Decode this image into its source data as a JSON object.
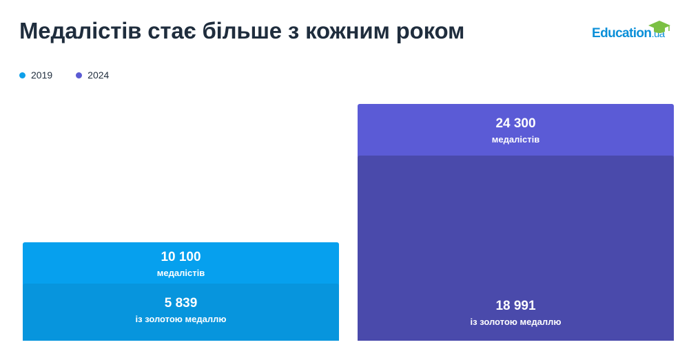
{
  "title": "Медалістів стає більше з кожним роком",
  "logo": {
    "main": "Education",
    "suffix": ".ua"
  },
  "legend": [
    {
      "label": "2019",
      "color": "#0ea0ea"
    },
    {
      "label": "2024",
      "color": "#5b5bd3"
    }
  ],
  "colors": {
    "y2019_total": "#06a0ee",
    "y2019_gold": "#0795dd",
    "y2024_total": "#5b5bd6",
    "y2024_gold": "#4a4aab"
  },
  "chart_data": {
    "type": "bar",
    "categories": [
      "2019",
      "2024"
    ],
    "series": [
      {
        "name": "медалістів",
        "values": [
          10100,
          24300
        ]
      },
      {
        "name": "із золотою медаллю",
        "values": [
          5839,
          18991
        ]
      }
    ],
    "value_labels": {
      "total": [
        "10 100",
        "24 300"
      ],
      "gold": [
        "5 839",
        "18 991"
      ]
    },
    "captions": {
      "total": "медалістів",
      "gold": "із золотою медаллю"
    },
    "title": "Медалістів стає більше з кожним роком",
    "xlabel": "",
    "ylabel": "",
    "ylim": [
      0,
      24300
    ],
    "grid": false,
    "legend_position": "top-left"
  }
}
